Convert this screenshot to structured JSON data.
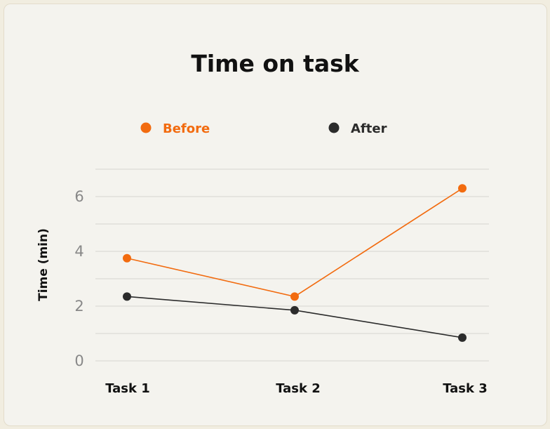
{
  "chart_data": {
    "type": "line",
    "title": "Time on task",
    "xlabel": "",
    "ylabel": "Time (min)",
    "categories": [
      "Task 1",
      "Task 2",
      "Task 3"
    ],
    "yticks": [
      "0",
      "2",
      "4",
      "6"
    ],
    "ylim": [
      0,
      7
    ],
    "grid": true,
    "legend_position": "top",
    "series": [
      {
        "name": "Before",
        "color": "#f26b0f",
        "values": [
          3.75,
          2.35,
          6.3
        ]
      },
      {
        "name": "After",
        "color": "#2b2b2b",
        "values": [
          2.35,
          1.85,
          0.85
        ]
      }
    ]
  }
}
